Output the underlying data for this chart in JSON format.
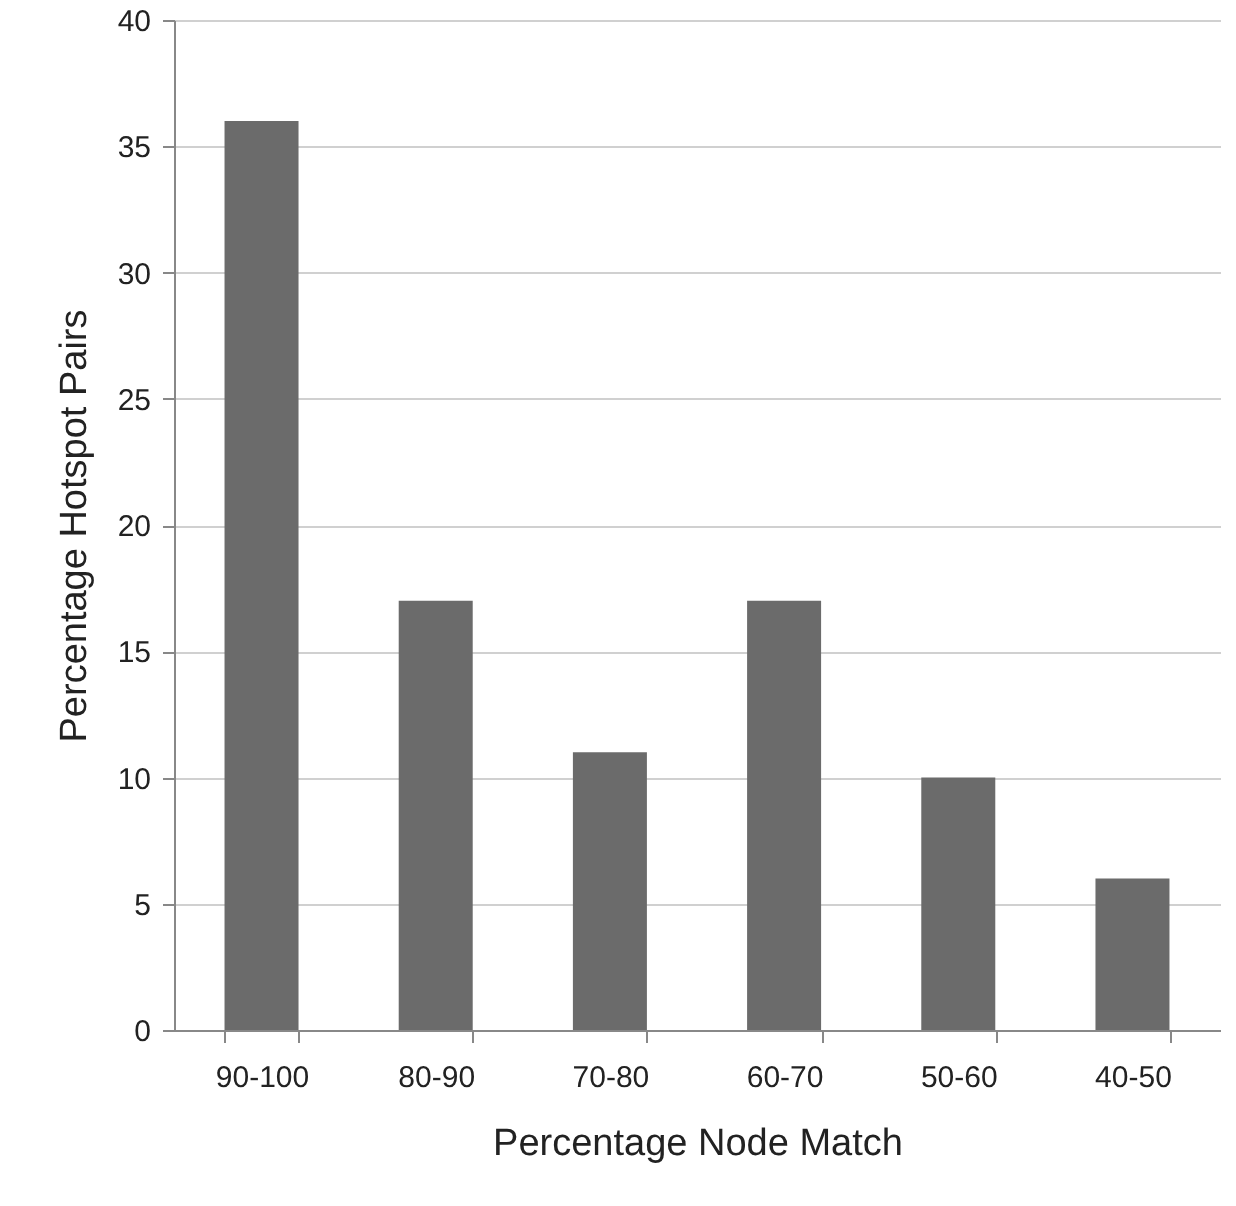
{
  "chart_data": {
    "type": "bar",
    "xlabel": "Percentage Node Match",
    "ylabel": "Percentage Hotspot Pairs",
    "categories": [
      "90-100",
      "80-90",
      "70-80",
      "60-70",
      "50-60",
      "40-50"
    ],
    "values": [
      36,
      17,
      11,
      17,
      10,
      6
    ],
    "color": "#6b6b6b",
    "ylim": [
      0,
      40
    ],
    "yticks": [
      0,
      5,
      10,
      15,
      20,
      25,
      30,
      35,
      40
    ],
    "grid": "y"
  }
}
